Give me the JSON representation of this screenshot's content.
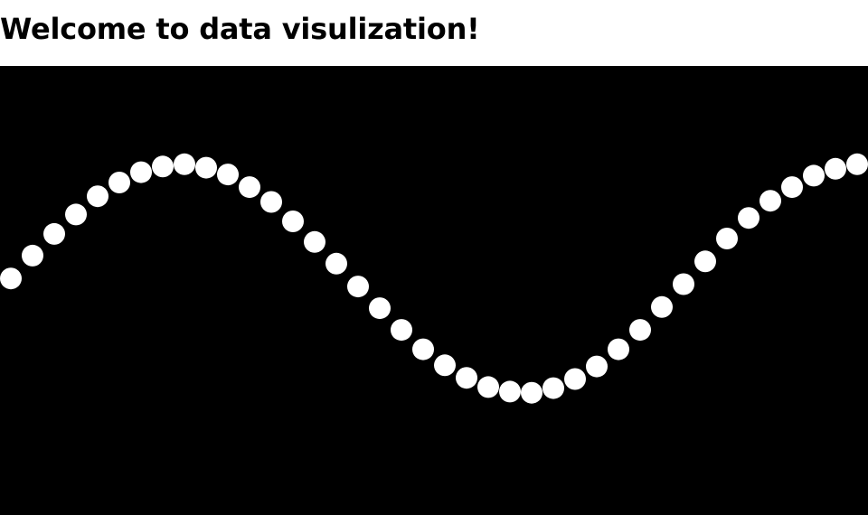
{
  "page": {
    "title": "Welcome to data visulization!"
  },
  "colors": {
    "background": "#000000",
    "point": "#ffffff"
  },
  "chart_data": {
    "type": "scatter",
    "title": "",
    "xlabel": "",
    "ylabel": "",
    "grid": false,
    "axes_visible": false,
    "series": [
      {
        "points": [
          {
            "x": 0,
            "y": 0.0
          },
          {
            "x": 1,
            "y": 0.2
          },
          {
            "x": 2,
            "y": 0.39
          },
          {
            "x": 3,
            "y": 0.56
          },
          {
            "x": 4,
            "y": 0.72
          },
          {
            "x": 5,
            "y": 0.84
          },
          {
            "x": 6,
            "y": 0.93
          },
          {
            "x": 7,
            "y": 0.98
          },
          {
            "x": 8,
            "y": 1.0
          },
          {
            "x": 9,
            "y": 0.97
          },
          {
            "x": 10,
            "y": 0.91
          },
          {
            "x": 11,
            "y": 0.8
          },
          {
            "x": 12,
            "y": 0.67
          },
          {
            "x": 13,
            "y": 0.5
          },
          {
            "x": 14,
            "y": 0.32
          },
          {
            "x": 15,
            "y": 0.13
          },
          {
            "x": 16,
            "y": -0.07
          },
          {
            "x": 17,
            "y": -0.26
          },
          {
            "x": 18,
            "y": -0.45
          },
          {
            "x": 19,
            "y": -0.62
          },
          {
            "x": 20,
            "y": -0.76
          },
          {
            "x": 21,
            "y": -0.87
          },
          {
            "x": 22,
            "y": -0.95
          },
          {
            "x": 23,
            "y": -0.99
          },
          {
            "x": 24,
            "y": -1.0
          },
          {
            "x": 25,
            "y": -0.96
          },
          {
            "x": 26,
            "y": -0.88
          },
          {
            "x": 27,
            "y": -0.77
          },
          {
            "x": 28,
            "y": -0.62
          },
          {
            "x": 29,
            "y": -0.45
          },
          {
            "x": 30,
            "y": -0.25
          },
          {
            "x": 31,
            "y": -0.05
          },
          {
            "x": 32,
            "y": 0.15
          },
          {
            "x": 33,
            "y": 0.35
          },
          {
            "x": 34,
            "y": 0.53
          },
          {
            "x": 35,
            "y": 0.68
          },
          {
            "x": 36,
            "y": 0.8
          },
          {
            "x": 37,
            "y": 0.9
          },
          {
            "x": 38,
            "y": 0.96
          },
          {
            "x": 39,
            "y": 1.0
          }
        ]
      }
    ],
    "xlim": [
      0,
      39.5
    ],
    "ylim": [
      -2.07,
      1.86
    ]
  }
}
